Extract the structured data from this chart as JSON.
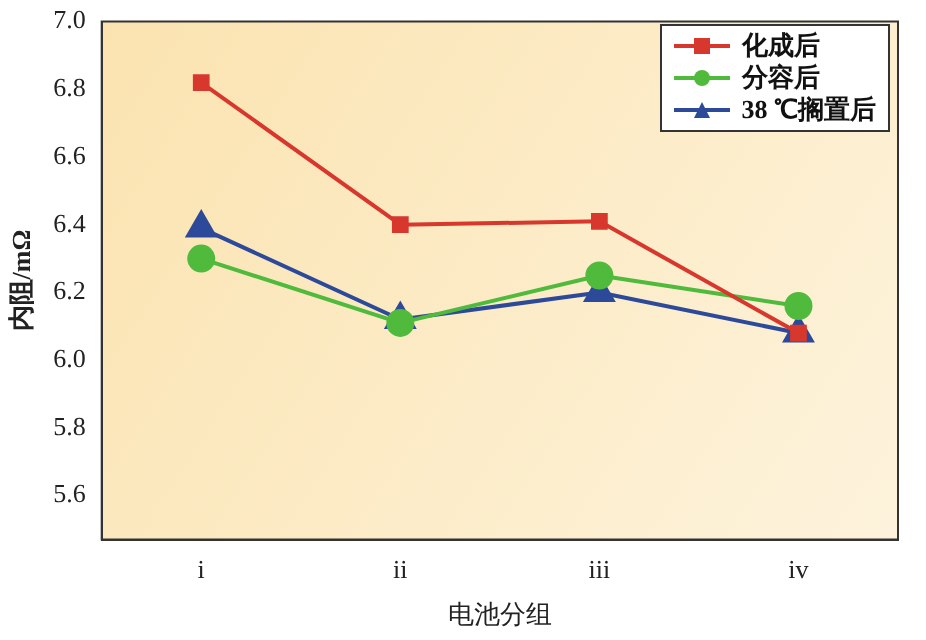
{
  "chart_data": {
    "type": "line",
    "xlabel": "电池分组",
    "ylabel": "内阻/mΩ",
    "categories": [
      "i",
      "ii",
      "iii",
      "iv"
    ],
    "series": [
      {
        "name": "化成后",
        "color": "#d7372c",
        "values": [
          6.82,
          6.4,
          6.41,
          6.08
        ],
        "marker": "square"
      },
      {
        "name": "分容后",
        "color": "#4fba3c",
        "values": [
          6.3,
          6.11,
          6.25,
          6.16
        ],
        "marker": "circle"
      },
      {
        "name": "38 ℃搁置后",
        "color": "#2d4a9a",
        "values": [
          6.39,
          6.12,
          6.2,
          6.08
        ],
        "marker": "triangle"
      }
    ],
    "ylim": [
      5.47,
      7.0
    ],
    "yticks": [
      5.6,
      5.8,
      {
        "value": 6,
        "label": "6.0"
      },
      6.2,
      6.4,
      6.6,
      6.8,
      {
        "value": 7,
        "label": "7.0"
      }
    ],
    "grid": false,
    "legend": "top right",
    "line_style": "solid"
  }
}
